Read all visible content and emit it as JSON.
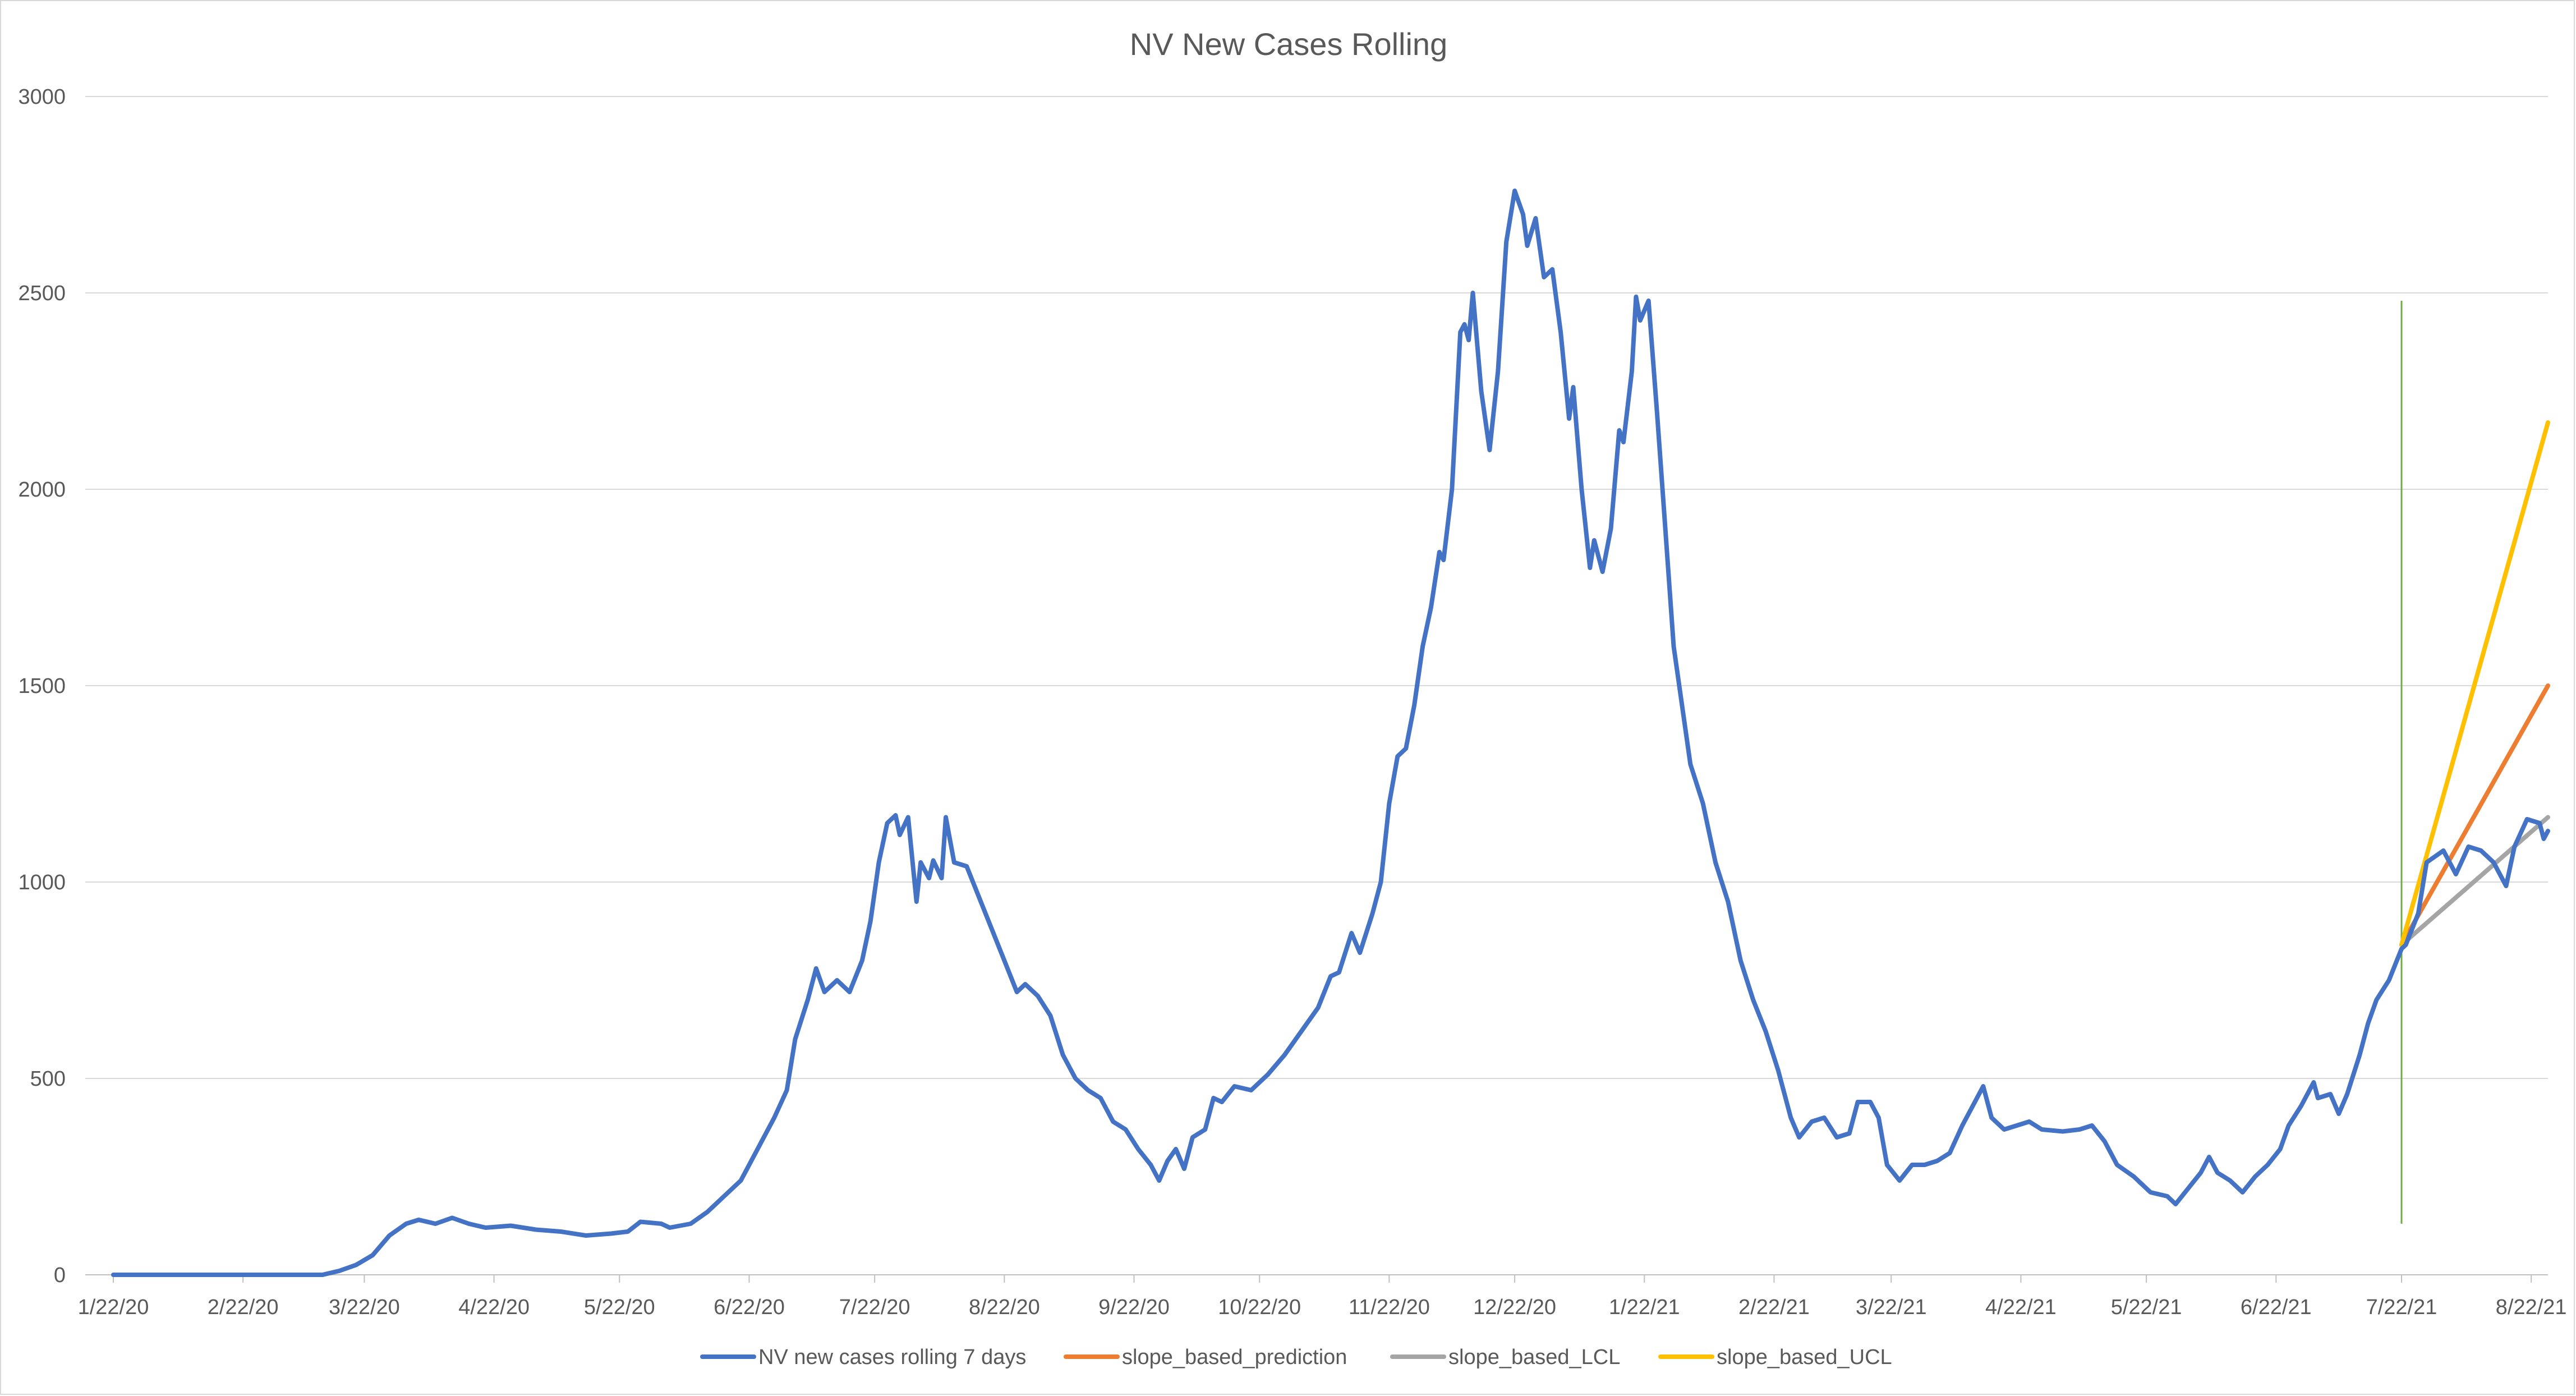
{
  "chart_data": {
    "type": "line",
    "title": "NV New Cases Rolling",
    "xlabel": "",
    "ylabel": "",
    "ylim": [
      0,
      3000
    ],
    "y_ticks": [
      "0",
      "500",
      "1000",
      "1500",
      "2000",
      "2500",
      "3000"
    ],
    "x_range": [
      "2020-01-22",
      "2021-08-26"
    ],
    "x_tick_labels": [
      "1/22/20",
      "2/22/20",
      "3/22/20",
      "4/22/20",
      "5/22/20",
      "6/22/20",
      "7/22/20",
      "8/22/20",
      "9/22/20",
      "10/22/20",
      "11/22/20",
      "12/22/20",
      "1/22/21",
      "2/22/21",
      "3/22/21",
      "4/22/21",
      "5/22/21",
      "6/22/21",
      "7/22/21",
      "8/22/21"
    ],
    "x_tick_dates": [
      "2020-01-22",
      "2020-02-22",
      "2020-03-22",
      "2020-04-22",
      "2020-05-22",
      "2020-06-22",
      "2020-07-22",
      "2020-08-22",
      "2020-09-22",
      "2020-10-22",
      "2020-11-22",
      "2020-12-22",
      "2021-01-22",
      "2021-02-22",
      "2021-03-22",
      "2021-04-22",
      "2021-05-22",
      "2021-06-22",
      "2021-07-22",
      "2021-08-22"
    ],
    "grid": "horizontal",
    "legend_position": "bottom",
    "vertical_marker": {
      "x": "2021-07-22",
      "y": [
        130,
        2480
      ],
      "color": "#70ad47"
    },
    "series": [
      {
        "name": "NV new cases rolling 7 days",
        "color": "#4472c4",
        "points": [
          [
            "2020-01-22",
            0
          ],
          [
            "2020-03-12",
            0
          ],
          [
            "2020-03-16",
            10
          ],
          [
            "2020-03-20",
            25
          ],
          [
            "2020-03-24",
            50
          ],
          [
            "2020-03-28",
            100
          ],
          [
            "2020-04-01",
            130
          ],
          [
            "2020-04-04",
            140
          ],
          [
            "2020-04-08",
            130
          ],
          [
            "2020-04-12",
            145
          ],
          [
            "2020-04-16",
            130
          ],
          [
            "2020-04-20",
            120
          ],
          [
            "2020-04-26",
            125
          ],
          [
            "2020-05-02",
            115
          ],
          [
            "2020-05-08",
            110
          ],
          [
            "2020-05-14",
            100
          ],
          [
            "2020-05-20",
            105
          ],
          [
            "2020-05-24",
            110
          ],
          [
            "2020-05-27",
            135
          ],
          [
            "2020-06-01",
            130
          ],
          [
            "2020-06-03",
            120
          ],
          [
            "2020-06-08",
            130
          ],
          [
            "2020-06-12",
            160
          ],
          [
            "2020-06-16",
            200
          ],
          [
            "2020-06-20",
            240
          ],
          [
            "2020-06-24",
            320
          ],
          [
            "2020-06-28",
            400
          ],
          [
            "2020-07-01",
            470
          ],
          [
            "2020-07-03",
            600
          ],
          [
            "2020-07-06",
            700
          ],
          [
            "2020-07-08",
            780
          ],
          [
            "2020-07-10",
            720
          ],
          [
            "2020-07-13",
            750
          ],
          [
            "2020-07-16",
            720
          ],
          [
            "2020-07-19",
            800
          ],
          [
            "2020-07-21",
            900
          ],
          [
            "2020-07-23",
            1050
          ],
          [
            "2020-07-25",
            1150
          ],
          [
            "2020-07-27",
            1170
          ],
          [
            "2020-07-28",
            1120
          ],
          [
            "2020-07-30",
            1165
          ],
          [
            "2020-08-01",
            950
          ],
          [
            "2020-08-02",
            1050
          ],
          [
            "2020-08-04",
            1010
          ],
          [
            "2020-08-05",
            1055
          ],
          [
            "2020-08-07",
            1010
          ],
          [
            "2020-08-08",
            1165
          ],
          [
            "2020-08-10",
            1050
          ],
          [
            "2020-08-13",
            1040
          ],
          [
            "2020-08-16",
            960
          ],
          [
            "2020-08-19",
            880
          ],
          [
            "2020-08-22",
            800
          ],
          [
            "2020-08-25",
            720
          ],
          [
            "2020-08-27",
            740
          ],
          [
            "2020-08-30",
            710
          ],
          [
            "2020-09-02",
            660
          ],
          [
            "2020-09-05",
            560
          ],
          [
            "2020-09-08",
            500
          ],
          [
            "2020-09-11",
            470
          ],
          [
            "2020-09-14",
            450
          ],
          [
            "2020-09-17",
            390
          ],
          [
            "2020-09-20",
            370
          ],
          [
            "2020-09-23",
            320
          ],
          [
            "2020-09-26",
            280
          ],
          [
            "2020-09-28",
            240
          ],
          [
            "2020-09-30",
            290
          ],
          [
            "2020-10-02",
            320
          ],
          [
            "2020-10-04",
            270
          ],
          [
            "2020-10-06",
            350
          ],
          [
            "2020-10-09",
            370
          ],
          [
            "2020-10-11",
            450
          ],
          [
            "2020-10-13",
            440
          ],
          [
            "2020-10-16",
            480
          ],
          [
            "2020-10-20",
            470
          ],
          [
            "2020-10-24",
            510
          ],
          [
            "2020-10-28",
            560
          ],
          [
            "2020-11-01",
            620
          ],
          [
            "2020-11-05",
            680
          ],
          [
            "2020-11-08",
            760
          ],
          [
            "2020-11-10",
            770
          ],
          [
            "2020-11-13",
            870
          ],
          [
            "2020-11-15",
            820
          ],
          [
            "2020-11-18",
            920
          ],
          [
            "2020-11-20",
            1000
          ],
          [
            "2020-11-22",
            1200
          ],
          [
            "2020-11-24",
            1320
          ],
          [
            "2020-11-26",
            1340
          ],
          [
            "2020-11-28",
            1450
          ],
          [
            "2020-11-30",
            1600
          ],
          [
            "2020-12-02",
            1700
          ],
          [
            "2020-12-04",
            1840
          ],
          [
            "2020-12-05",
            1820
          ],
          [
            "2020-12-07",
            2000
          ],
          [
            "2020-12-09",
            2400
          ],
          [
            "2020-12-10",
            2420
          ],
          [
            "2020-12-11",
            2380
          ],
          [
            "2020-12-12",
            2500
          ],
          [
            "2020-12-14",
            2250
          ],
          [
            "2020-12-16",
            2100
          ],
          [
            "2020-12-18",
            2300
          ],
          [
            "2020-12-20",
            2630
          ],
          [
            "2020-12-22",
            2760
          ],
          [
            "2020-12-24",
            2700
          ],
          [
            "2020-12-25",
            2620
          ],
          [
            "2020-12-27",
            2690
          ],
          [
            "2020-12-29",
            2540
          ],
          [
            "2020-12-31",
            2560
          ],
          [
            "2021-01-02",
            2400
          ],
          [
            "2021-01-04",
            2180
          ],
          [
            "2021-01-05",
            2260
          ],
          [
            "2021-01-07",
            2000
          ],
          [
            "2021-01-09",
            1800
          ],
          [
            "2021-01-10",
            1870
          ],
          [
            "2021-01-12",
            1790
          ],
          [
            "2021-01-14",
            1900
          ],
          [
            "2021-01-16",
            2150
          ],
          [
            "2021-01-17",
            2120
          ],
          [
            "2021-01-19",
            2300
          ],
          [
            "2021-01-20",
            2490
          ],
          [
            "2021-01-21",
            2430
          ],
          [
            "2021-01-23",
            2480
          ],
          [
            "2021-01-25",
            2200
          ],
          [
            "2021-01-27",
            1900
          ],
          [
            "2021-01-29",
            1600
          ],
          [
            "2021-01-31",
            1450
          ],
          [
            "2021-02-02",
            1300
          ],
          [
            "2021-02-05",
            1200
          ],
          [
            "2021-02-08",
            1050
          ],
          [
            "2021-02-11",
            950
          ],
          [
            "2021-02-14",
            800
          ],
          [
            "2021-02-17",
            700
          ],
          [
            "2021-02-20",
            620
          ],
          [
            "2021-02-23",
            520
          ],
          [
            "2021-02-26",
            400
          ],
          [
            "2021-02-28",
            350
          ],
          [
            "2021-03-03",
            390
          ],
          [
            "2021-03-06",
            400
          ],
          [
            "2021-03-09",
            350
          ],
          [
            "2021-03-12",
            360
          ],
          [
            "2021-03-14",
            440
          ],
          [
            "2021-03-17",
            440
          ],
          [
            "2021-03-19",
            400
          ],
          [
            "2021-03-21",
            280
          ],
          [
            "2021-03-24",
            240
          ],
          [
            "2021-03-27",
            280
          ],
          [
            "2021-03-30",
            280
          ],
          [
            "2021-04-02",
            290
          ],
          [
            "2021-04-05",
            310
          ],
          [
            "2021-04-08",
            380
          ],
          [
            "2021-04-11",
            440
          ],
          [
            "2021-04-13",
            480
          ],
          [
            "2021-04-15",
            400
          ],
          [
            "2021-04-18",
            370
          ],
          [
            "2021-04-21",
            380
          ],
          [
            "2021-04-24",
            390
          ],
          [
            "2021-04-27",
            370
          ],
          [
            "2021-05-02",
            365
          ],
          [
            "2021-05-06",
            370
          ],
          [
            "2021-05-09",
            380
          ],
          [
            "2021-05-12",
            340
          ],
          [
            "2021-05-15",
            280
          ],
          [
            "2021-05-19",
            250
          ],
          [
            "2021-05-23",
            210
          ],
          [
            "2021-05-27",
            200
          ],
          [
            "2021-05-29",
            180
          ],
          [
            "2021-06-01",
            220
          ],
          [
            "2021-06-04",
            260
          ],
          [
            "2021-06-06",
            300
          ],
          [
            "2021-06-08",
            260
          ],
          [
            "2021-06-11",
            240
          ],
          [
            "2021-06-14",
            210
          ],
          [
            "2021-06-17",
            250
          ],
          [
            "2021-06-20",
            280
          ],
          [
            "2021-06-23",
            320
          ],
          [
            "2021-06-25",
            380
          ],
          [
            "2021-06-28",
            430
          ],
          [
            "2021-07-01",
            490
          ],
          [
            "2021-07-02",
            450
          ],
          [
            "2021-07-05",
            460
          ],
          [
            "2021-07-07",
            410
          ],
          [
            "2021-07-09",
            460
          ],
          [
            "2021-07-12",
            560
          ],
          [
            "2021-07-14",
            640
          ],
          [
            "2021-07-16",
            700
          ],
          [
            "2021-07-19",
            750
          ],
          [
            "2021-07-22",
            830
          ],
          [
            "2021-07-23",
            840
          ],
          [
            "2021-07-26",
            920
          ],
          [
            "2021-07-28",
            1050
          ],
          [
            "2021-08-01",
            1080
          ],
          [
            "2021-08-04",
            1020
          ],
          [
            "2021-08-07",
            1090
          ],
          [
            "2021-08-10",
            1080
          ],
          [
            "2021-08-13",
            1050
          ],
          [
            "2021-08-16",
            990
          ],
          [
            "2021-08-18",
            1090
          ],
          [
            "2021-08-21",
            1160
          ],
          [
            "2021-08-24",
            1150
          ],
          [
            "2021-08-25",
            1110
          ],
          [
            "2021-08-26",
            1130
          ]
        ]
      },
      {
        "name": "slope_based_prediction",
        "color": "#ed7d31",
        "points": [
          [
            "2021-07-22",
            840
          ],
          [
            "2021-08-26",
            1500
          ]
        ]
      },
      {
        "name": "slope_based_LCL",
        "color": "#a5a5a5",
        "points": [
          [
            "2021-07-22",
            840
          ],
          [
            "2021-08-26",
            1165
          ]
        ]
      },
      {
        "name": "slope_based_UCL",
        "color": "#ffc000",
        "points": [
          [
            "2021-07-22",
            840
          ],
          [
            "2021-08-26",
            2170
          ]
        ]
      }
    ]
  }
}
